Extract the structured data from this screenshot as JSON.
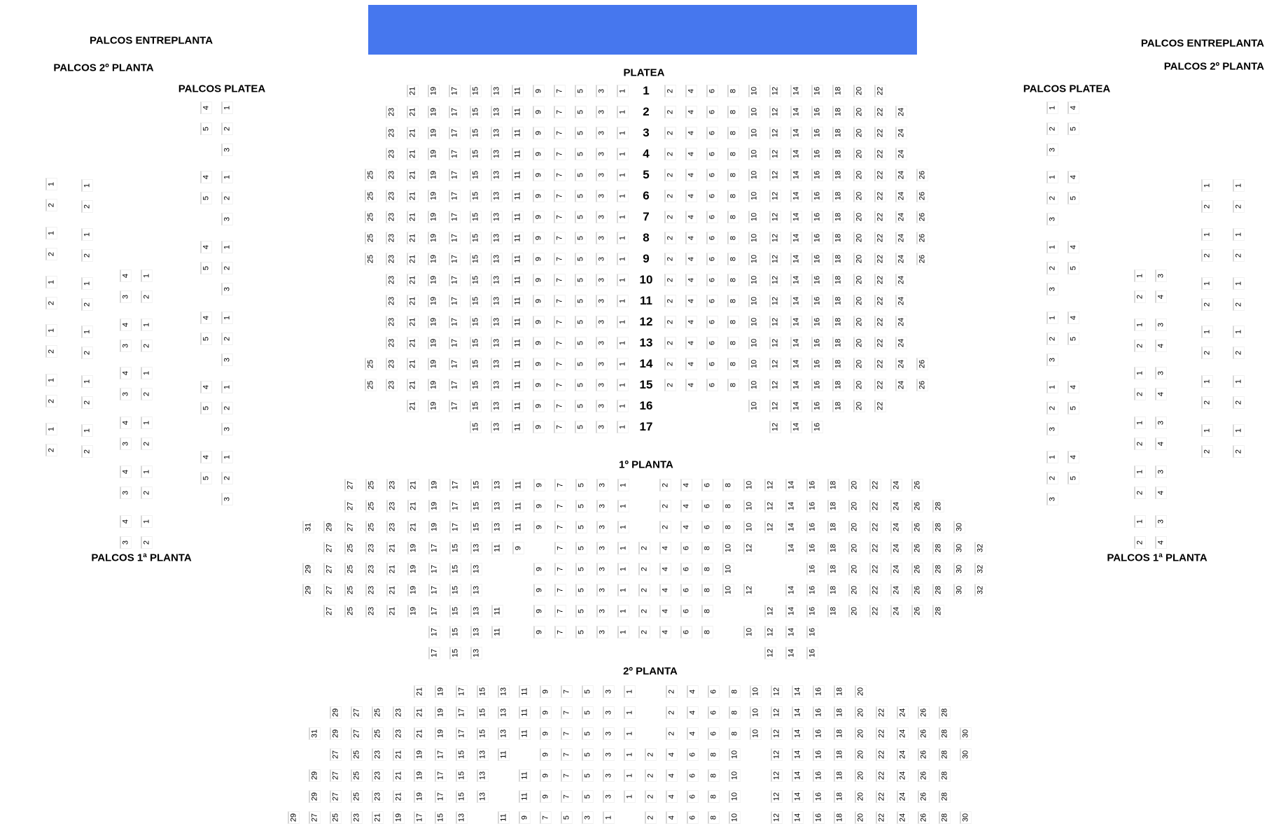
{
  "stage": {
    "color": "#4677ee"
  },
  "labels": {
    "palcos_entreplanta_left": "PALCOS ENTREPLANTA",
    "palcos_2_planta_left": "PALCOS 2º PLANTA",
    "palcos_platea_left": "PALCOS PLATEA",
    "palcos_1_planta_left": "PALCOS 1ª PLANTA",
    "palcos_entreplanta_right": "PALCOS ENTREPLANTA",
    "palcos_2_planta_right": "PALCOS 2º PLANTA",
    "palcos_platea_right": "PALCOS PLATEA",
    "palcos_1_planta_right": "PALCOS 1ª PLANTA",
    "platea": "PLATEA",
    "planta_1": "1º PLANTA",
    "planta_2": "2º PLANTA"
  },
  "platea": {
    "rows": [
      {
        "label": "1",
        "left": "- - 21 19 17 15 13 11 9 7 5 3 1",
        "right": "2 4 6 8 10 12 14 16 18 20 22"
      },
      {
        "label": "2",
        "left": "- 23 21 19 17 15 13 11 9 7 5 3 1",
        "right": "2 4 6 8 10 12 14 16 18 20 22 24"
      },
      {
        "label": "3",
        "left": "- 23 21 19 17 15 13 11 9 7 5 3 1",
        "right": "2 4 6 8 10 12 14 16 18 20 22 24"
      },
      {
        "label": "4",
        "left": "- 23 21 19 17 15 13 11 9 7 5 3 1",
        "right": "2 4 6 8 10 12 14 16 18 20 22 24"
      },
      {
        "label": "5",
        "left": "25 23 21 19 17 15 13 11 9 7 5 3 1",
        "right": "2 4 6 8 10 12 14 16 18 20 22 24 26"
      },
      {
        "label": "6",
        "left": "25 23 21 19 17 15 13 11 9 7 5 3 1",
        "right": "2 4 6 8 10 12 14 16 18 20 22 24 26"
      },
      {
        "label": "7",
        "left": "25 23 21 19 17 15 13 11 9 7 5 3 1",
        "right": "2 4 6 8 10 12 14 16 18 20 22 24 26"
      },
      {
        "label": "8",
        "left": "25 23 21 19 17 15 13 11 9 7 5 3 1",
        "right": "2 4 6 8 10 12 14 16 18 20 22 24 26"
      },
      {
        "label": "9",
        "left": "25 23 21 19 17 15 13 11 9 7 5 3 1",
        "right": "2 4 6 8 10 12 14 16 18 20 22 24 26"
      },
      {
        "label": "10",
        "left": "- 23 21 19 17 15 13 11 9 7 5 3 1",
        "right": "2 4 6 8 10 12 14 16 18 20 22 24"
      },
      {
        "label": "11",
        "left": "- 23 21 19 17 15 13 11 9 7 5 3 1",
        "right": "2 4 6 8 10 12 14 16 18 20 22 24"
      },
      {
        "label": "12",
        "left": "- 23 21 19 17 15 13 11 9 7 5 3 1",
        "right": "2 4 6 8 10 12 14 16 18 20 22 24"
      },
      {
        "label": "13",
        "left": "- 23 21 19 17 15 13 11 9 7 5 3 1",
        "right": "2 4 6 8 10 12 14 16 18 20 22 24"
      },
      {
        "label": "14",
        "left": "25 23 21 19 17 15 13 11 9 7 5 3 1",
        "right": "2 4 6 8 10 12 14 16 18 20 22 24 26"
      },
      {
        "label": "15",
        "left": "25 23 21 19 17 15 13 11 9 7 5 3 1",
        "right": "2 4 6 8 10 12 14 16 18 20 22 24 26"
      },
      {
        "label": "16",
        "left": "- - 21 19 17 15 13 11 9 7 5 3 1",
        "right": "- - - - 10 12 14 16 18 20 22"
      },
      {
        "label": "17",
        "left": "- - - - - 15 13 11 9 7 5 3 1",
        "right": "- - - - - 12 14 16"
      }
    ]
  },
  "planta_1": {
    "rows": [
      "- - 27 25 23 21 19 17 15 13 11 9 7 5 3 1 - 2 4 6 8 10 12 14 16 18 20 22 24 26",
      "- - 27 25 23 21 19 17 15 13 11 9 7 5 3 1 - 2 4 6 8 10 12 14 16 18 20 22 24 26 28",
      "31 29 27 25 23 21 19 17 15 13 11 9 7 5 3 1 - 2 4 6 8 10 12 14 16 18 20 22 24 26 28 30",
      "- 27 25 23 21 19 17 15 13 11 9 - 7 5 3 1 2 4 6 8 10 12 - 14 16 18 20 22 24 26 28 30 32",
      "29 27 25 23 21 19 17 15 13 - - 9 7 5 3 1 2 4 6 8 10 - - - 16 18 20 22 24 26 28 30 32",
      "29 27 25 23 21 19 17 15 13 - - 9 7 5 3 1 2 4 6 8 10 12 - 14 16 18 20 22 24 26 28 30 32",
      "- 27 25 23 21 19 17 15 13 11 - 9 7 5 3 1 2 4 6 8 - - 12 14 16 18 20 22 24 26 28",
      "- - - - - - 17 15 13 11 - 9 7 5 3 1 2 4 6 8 - 10 12 14 16",
      "- - - - - - 17 15 13 - - - - - - - - - - - - - 12 14 16"
    ]
  },
  "planta_2": {
    "rows": [
      "- - - - - - 21 19 17 15 13 11 9 7 5 3 1 - 2 4 6 8 10 12 14 16 18 20",
      "- - 29 27 25 23 21 19 17 15 13 11 9 7 5 3 1 - 2 4 6 8 10 12 14 16 18 20 22 24 26 28",
      "- 31 29 27 25 23 21 19 17 15 13 11 9 7 5 3 1 - 2 4 6 8 10 12 14 16 18 20 22 24 26 28 30",
      "- - 27 25 23 21 19 17 15 13 11 - 9 7 5 3 1 2 4 6 8 10 - 12 14 16 18 20 22 24 26 28 30",
      "- 29 27 25 23 21 19 17 15 13 - 11 9 7 5 3 1 2 4 6 8 10 - 12 14 16 18 20 22 24 26 28",
      "- 29 27 25 23 21 19 17 15 13 - 11 9 7 5 3 1 2 4 6 8 10 - 12 14 16 18 20 22 24 26 28",
      "29 27 25 23 21 19 17 15 13 - 11 9 7 5 3 1 - 2 4 6 8 10 - 12 14 16 18 20 22 24 26 28 30"
    ]
  },
  "palcos": {
    "platea_left": {
      "boxes": 6,
      "rows": [
        "4 1",
        "5 2",
        "- 3"
      ]
    },
    "platea_right": {
      "boxes": 6,
      "rows": [
        "1 4",
        "2 5",
        "3 -"
      ]
    },
    "planta_1_left": {
      "boxes": 6,
      "rows": [
        "4 1",
        "3 2"
      ]
    },
    "planta_1_right": {
      "boxes": 6,
      "rows": [
        "1 3",
        "2 4"
      ]
    },
    "entreplanta_left": {
      "boxes": 6,
      "rows": [
        "1",
        "2"
      ]
    },
    "planta_2_left": {
      "boxes": 6,
      "rows": [
        "1",
        "2"
      ]
    },
    "entreplanta_right": {
      "boxes": 6,
      "rows": [
        "1",
        "2"
      ]
    },
    "planta_2_right": {
      "boxes": 6,
      "rows": [
        "1",
        "2"
      ]
    }
  }
}
